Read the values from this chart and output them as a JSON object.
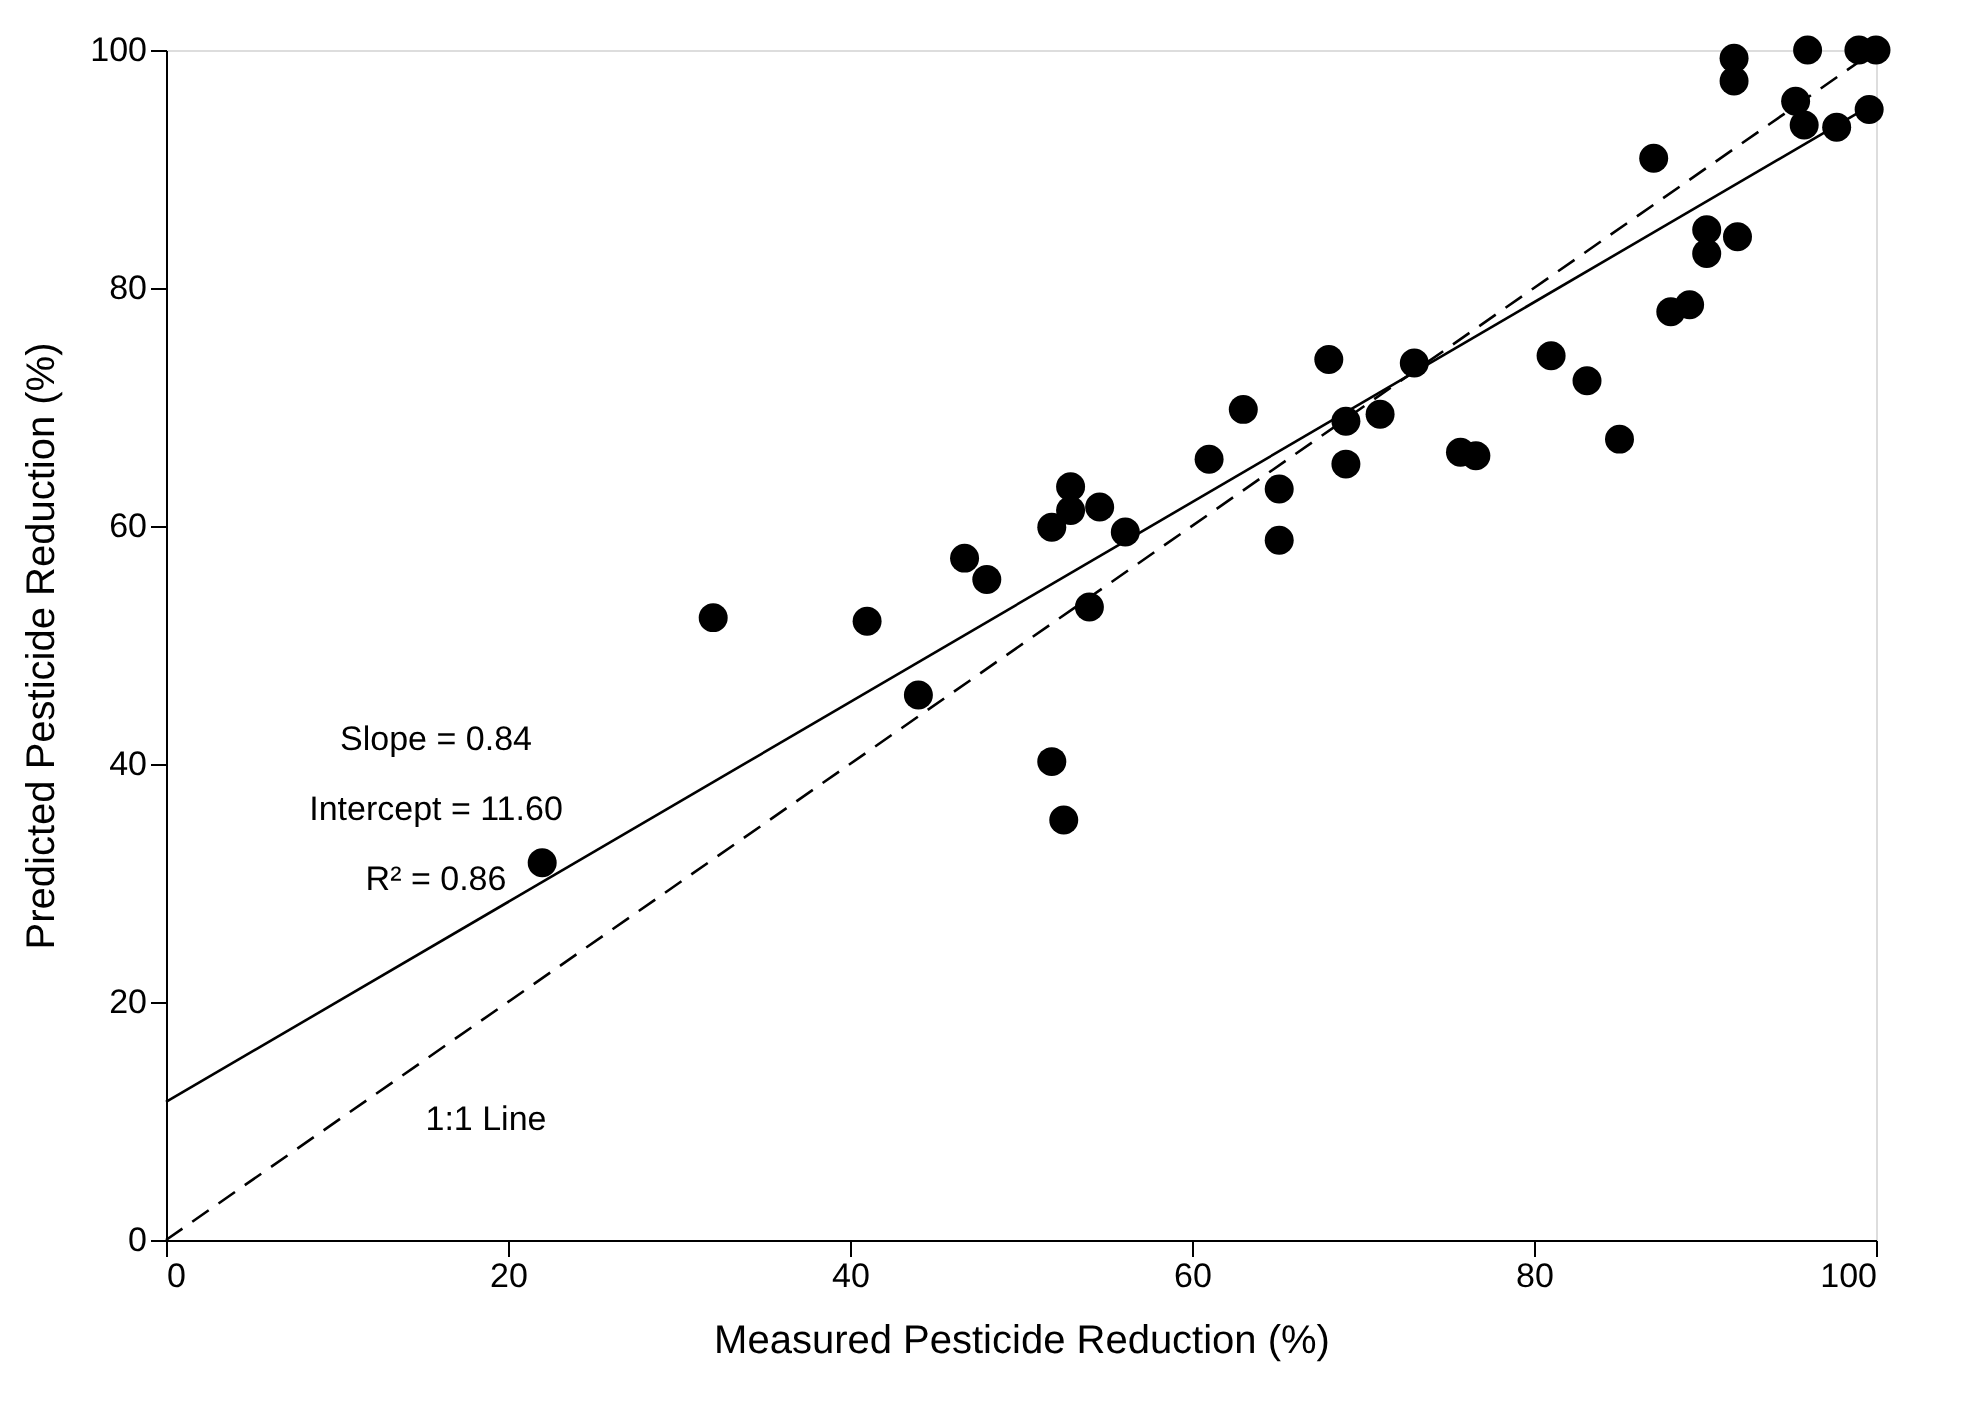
{
  "chart_data": {
    "type": "scatter",
    "xlabel": "Measured Pesticide Reduction (%)",
    "ylabel": "Predicted Pesticide Reduction (%)",
    "xlim": [
      0,
      100
    ],
    "ylim": [
      0,
      100
    ],
    "xticks": [
      0,
      20,
      40,
      60,
      80,
      100
    ],
    "yticks": [
      0,
      20,
      40,
      60,
      80,
      100
    ],
    "series": [
      {
        "marker": "circle",
        "color": "#000000",
        "x": [
          22.0,
          32.0,
          41.0,
          44.0,
          46.7,
          48.0,
          51.8,
          52.9,
          52.9,
          54.6,
          56.1,
          54.0,
          51.8,
          52.5,
          68.0,
          73.0,
          63.0,
          61.0,
          69.0,
          71.0,
          69.0,
          65.1,
          65.1,
          75.7,
          76.6,
          81.0,
          83.1,
          85.0,
          88.0,
          89.1,
          87.0,
          90.1,
          91.9,
          90.1,
          91.7,
          91.7,
          96.0,
          99.0,
          100.0,
          95.3,
          95.8,
          97.7,
          99.6
        ],
        "values": [
          31.7,
          52.3,
          52.0,
          45.8,
          57.3,
          55.5,
          59.9,
          61.3,
          63.3,
          61.6,
          59.5,
          53.2,
          40.2,
          35.3,
          74.0,
          73.7,
          69.8,
          65.6,
          68.8,
          69.4,
          65.2,
          63.1,
          58.8,
          66.2,
          65.9,
          74.3,
          72.2,
          67.3,
          78.0,
          78.6,
          90.9,
          84.9,
          84.3,
          82.9,
          99.3,
          97.4,
          100.0,
          100.0,
          100.0,
          95.7,
          93.7,
          93.5,
          95.0
        ]
      },
      {
        "type": "line",
        "line_style": "solid",
        "color": "#000000",
        "x": [
          0,
          100
        ],
        "values": [
          11.6,
          95.6
        ]
      },
      {
        "type": "line",
        "line_style": "dashed",
        "color": "#000000",
        "x": [
          0,
          100
        ],
        "values": [
          0,
          100
        ]
      }
    ],
    "annotations": [
      "Slope = 0.84",
      "Intercept = 11.60",
      "R² = 0.86",
      "1:1 Line"
    ]
  }
}
